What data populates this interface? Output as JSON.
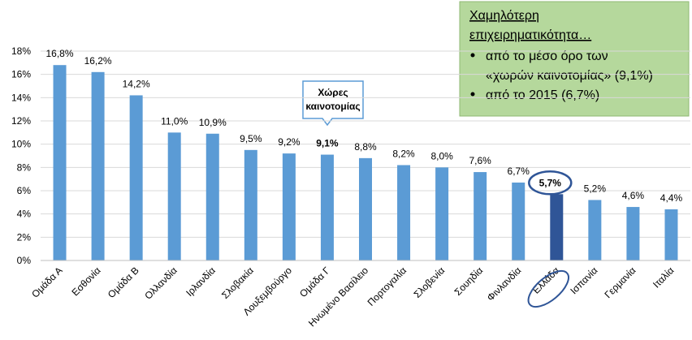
{
  "chart_data": {
    "type": "bar",
    "categories": [
      "Ομάδα Α",
      "Εσθονία",
      "Ομάδα Β",
      "Ολλανδία",
      "Ιρλανδία",
      "Σλοβακία",
      "Λουξεμβούργο",
      "Ομάδα Γ",
      "Ηνωμένο Βασίλειο",
      "Πορτογαλία",
      "Σλοβενία",
      "Σουηδία",
      "Φινλανδία",
      "Ελλάδα",
      "Ισπανία",
      "Γερμανία",
      "Ιταλία"
    ],
    "values": [
      16.8,
      16.2,
      14.2,
      11.0,
      10.9,
      9.5,
      9.2,
      9.1,
      8.8,
      8.2,
      8.0,
      7.6,
      6.7,
      5.7,
      5.2,
      4.6,
      4.4
    ],
    "value_labels": [
      "16,8%",
      "16,2%",
      "14,2%",
      "11,0%",
      "10,9%",
      "9,5%",
      "9,2%",
      "9,1%",
      "8,8%",
      "8,2%",
      "8,0%",
      "7,6%",
      "6,7%",
      "5,7%",
      "5,2%",
      "4,6%",
      "4,4%"
    ],
    "colors": [
      "#5b9bd5",
      "#5b9bd5",
      "#5b9bd5",
      "#5b9bd5",
      "#5b9bd5",
      "#5b9bd5",
      "#5b9bd5",
      "#5b9bd5",
      "#5b9bd5",
      "#5b9bd5",
      "#5b9bd5",
      "#5b9bd5",
      "#5b9bd5",
      "#2f5597",
      "#5b9bd5",
      "#5b9bd5",
      "#5b9bd5"
    ],
    "bold_value_labels": [
      7,
      13
    ],
    "ylim": [
      0,
      18
    ],
    "yticks": [
      {
        "value": 0,
        "label": "0%"
      },
      {
        "value": 2,
        "label": "2%"
      },
      {
        "value": 4,
        "label": "4%"
      },
      {
        "value": 6,
        "label": "6%"
      },
      {
        "value": 8,
        "label": "8%"
      },
      {
        "value": 10,
        "label": "10%"
      },
      {
        "value": 12,
        "label": "12%"
      },
      {
        "value": 14,
        "label": "14%"
      },
      {
        "value": 16,
        "label": "16%"
      },
      {
        "value": 18,
        "label": "18%"
      }
    ],
    "grid": true,
    "callout": [
      "Χώρες",
      "καινοτομίας"
    ],
    "note": {
      "title": [
        "Χαμηλότερη",
        "επιχειρηματικότητα…"
      ],
      "bullets": [
        [
          "από το μέσο όρο των",
          "«χωρών καινοτομίας» (9,1%)"
        ],
        [
          "από το 2015 (6,7%)"
        ]
      ]
    }
  }
}
